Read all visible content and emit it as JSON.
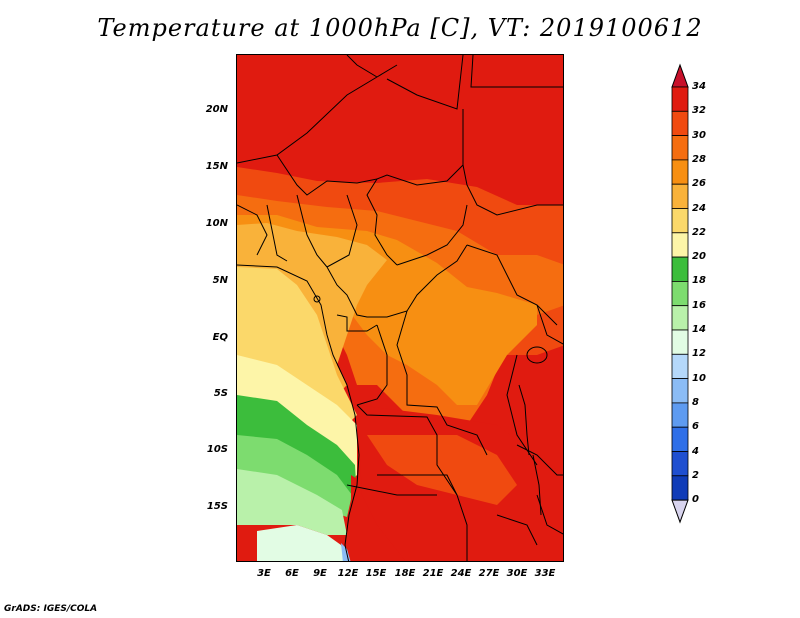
{
  "title": "Temperature at 1000hPa [C], VT: 2019100612",
  "credit": "GrADS: IGES/COLA",
  "map": {
    "lat_ticks": [
      "20N",
      "15N",
      "10N",
      "5N",
      "EQ",
      "5S",
      "10S",
      "15S"
    ],
    "lon_ticks": [
      "3E",
      "6E",
      "9E",
      "12E",
      "15E",
      "18E",
      "21E",
      "24E",
      "27E",
      "30E",
      "33E"
    ]
  },
  "colorbar": {
    "levels": [
      "34",
      "32",
      "30",
      "28",
      "26",
      "24",
      "22",
      "20",
      "18",
      "16",
      "14",
      "12",
      "10",
      "8",
      "6",
      "4",
      "2",
      "0"
    ],
    "colors": [
      "#e01b10",
      "#f04a10",
      "#f56d10",
      "#f78f12",
      "#f9b23a",
      "#fbd86a",
      "#fdf5a8",
      "#3cbd3c",
      "#7ddc6f",
      "#b9f1aa",
      "#e2fce4",
      "#b5d8fa",
      "#8bbcf5",
      "#5e9bf0",
      "#2f6fe8",
      "#1f4fd0",
      "#103cb8",
      "#0a1a6e"
    ],
    "top_color": "#c8102a",
    "bottom_color": "#d8d4ee"
  }
}
